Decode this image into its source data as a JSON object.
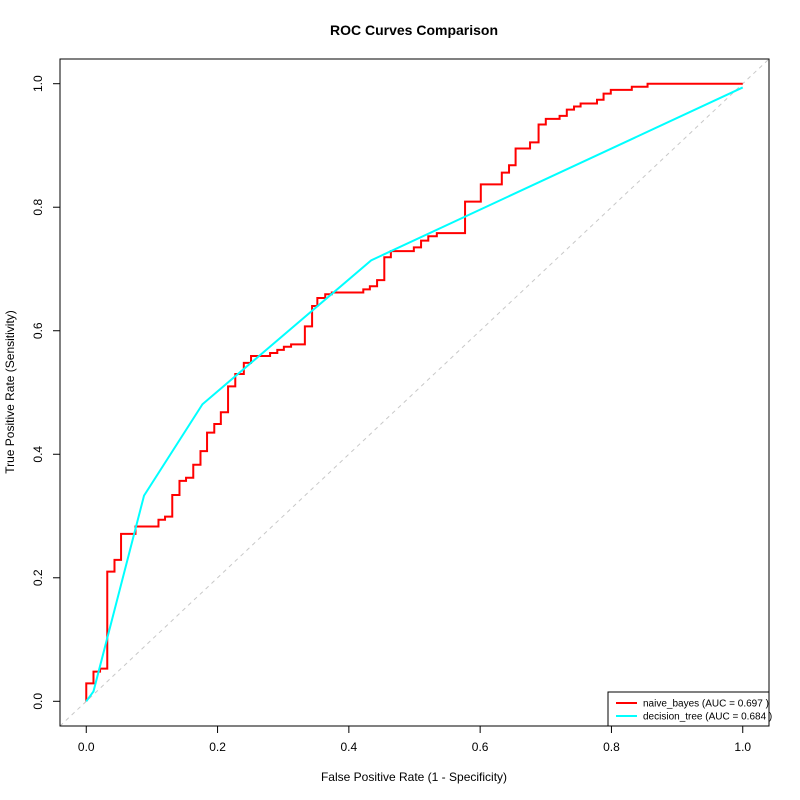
{
  "chart_data": {
    "type": "line",
    "title": "ROC Curves Comparison",
    "x_label": "False Positive Rate (1 - Specificity)",
    "y_label": "True Positive Rate (Sensitivity)",
    "xlim": [
      -0.04,
      1.04
    ],
    "ylim": [
      -0.04,
      1.04
    ],
    "xticks": [
      {
        "value": 0,
        "label": "0.0"
      },
      0.2,
      0.4,
      0.6,
      0.8,
      {
        "value": 1,
        "label": "1.0"
      }
    ],
    "yticks": [
      {
        "value": 0,
        "label": "0.0"
      },
      0.2,
      0.4,
      0.6,
      0.8,
      {
        "value": 1,
        "label": "1.0"
      }
    ],
    "diagonal": true,
    "legend": "bottom-right",
    "series": [
      {
        "name": "naive_bayes (AUC = 0.697 )",
        "color": "#ff0000",
        "x": [
          0,
          0,
          0.011,
          0.011,
          0.021,
          0.021,
          0.032,
          0.032,
          0.043,
          0.043,
          0.053,
          0.053,
          0.075,
          0.075,
          0.11,
          0.11,
          0.12,
          0.12,
          0.131,
          0.131,
          0.142,
          0.142,
          0.152,
          0.152,
          0.163,
          0.163,
          0.174,
          0.174,
          0.184,
          0.184,
          0.195,
          0.195,
          0.205,
          0.205,
          0.216,
          0.216,
          0.227,
          0.227,
          0.24,
          0.24,
          0.251,
          0.251,
          0.28,
          0.28,
          0.291,
          0.291,
          0.301,
          0.301,
          0.312,
          0.312,
          0.333,
          0.333,
          0.344,
          0.344,
          0.352,
          0.352,
          0.364,
          0.364,
          0.374,
          0.374,
          0.422,
          0.422,
          0.432,
          0.432,
          0.443,
          0.443,
          0.454,
          0.454,
          0.464,
          0.464,
          0.499,
          0.499,
          0.51,
          0.51,
          0.521,
          0.521,
          0.534,
          0.534,
          0.577,
          0.577,
          0.601,
          0.601,
          0.633,
          0.633,
          0.644,
          0.644,
          0.654,
          0.654,
          0.676,
          0.676,
          0.689,
          0.689,
          0.7,
          0.7,
          0.721,
          0.721,
          0.732,
          0.732,
          0.743,
          0.743,
          0.753,
          0.753,
          0.778,
          0.778,
          0.788,
          0.788,
          0.799,
          0.799,
          0.831,
          0.831,
          0.855,
          0.855,
          1
        ],
        "values": [
          0,
          0.029,
          0.029,
          0.048,
          0.048,
          0.053,
          0.053,
          0.21,
          0.21,
          0.229,
          0.229,
          0.271,
          0.271,
          0.283,
          0.283,
          0.294,
          0.294,
          0.299,
          0.299,
          0.334,
          0.334,
          0.357,
          0.357,
          0.362,
          0.362,
          0.383,
          0.383,
          0.405,
          0.405,
          0.435,
          0.435,
          0.449,
          0.449,
          0.468,
          0.468,
          0.51,
          0.51,
          0.53,
          0.53,
          0.548,
          0.548,
          0.559,
          0.559,
          0.564,
          0.564,
          0.569,
          0.569,
          0.574,
          0.574,
          0.578,
          0.578,
          0.607,
          0.607,
          0.64,
          0.64,
          0.653,
          0.653,
          0.659,
          0.659,
          0.662,
          0.662,
          0.667,
          0.667,
          0.672,
          0.672,
          0.682,
          0.682,
          0.719,
          0.719,
          0.729,
          0.729,
          0.735,
          0.735,
          0.746,
          0.746,
          0.753,
          0.753,
          0.758,
          0.758,
          0.809,
          0.809,
          0.837,
          0.837,
          0.856,
          0.856,
          0.868,
          0.868,
          0.895,
          0.895,
          0.905,
          0.905,
          0.934,
          0.934,
          0.943,
          0.943,
          0.948,
          0.948,
          0.958,
          0.958,
          0.963,
          0.963,
          0.968,
          0.968,
          0.974,
          0.974,
          0.984,
          0.984,
          0.99,
          0.99,
          0.995,
          0.995,
          1,
          1
        ]
      },
      {
        "name": "decision_tree (AUC = 0.684 )",
        "color": "#00ffff",
        "x": [
          0,
          0.011,
          0.088,
          0.177,
          0.434,
          1
        ],
        "values": [
          0,
          0.016,
          0.333,
          0.481,
          0.714,
          0.994
        ]
      }
    ]
  }
}
